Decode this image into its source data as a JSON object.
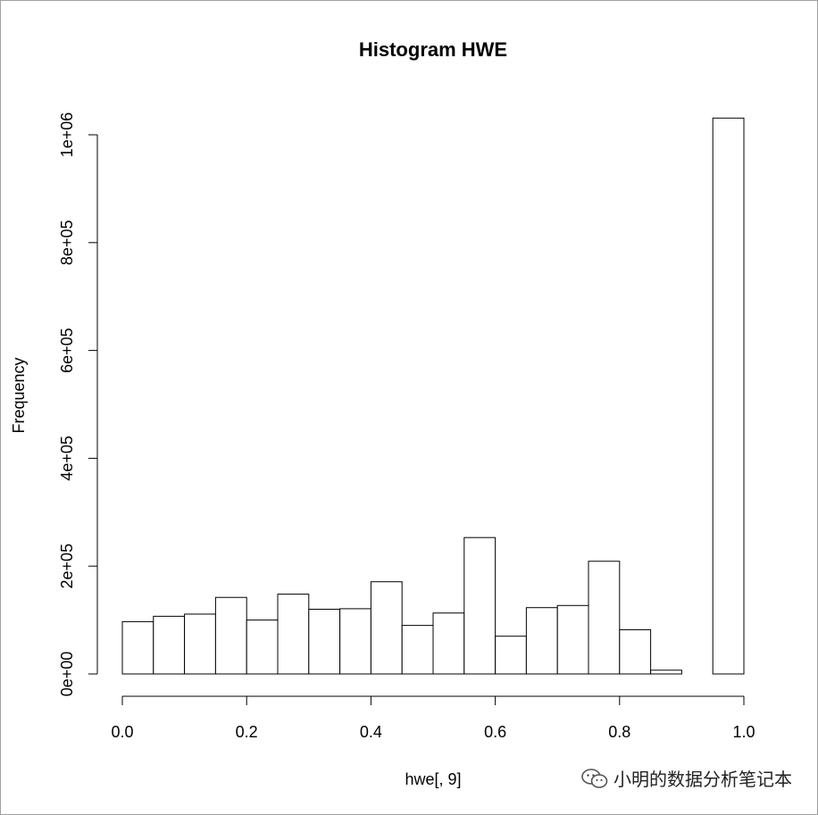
{
  "chart_data": {
    "type": "bar",
    "title": "Histogram HWE",
    "xlabel": "hwe[, 9]",
    "ylabel": "Frequency",
    "bin_width": 0.05,
    "bins_start": [
      0.0,
      0.05,
      0.1,
      0.15,
      0.2,
      0.25,
      0.3,
      0.35,
      0.4,
      0.45,
      0.5,
      0.55,
      0.6,
      0.65,
      0.7,
      0.75,
      0.8,
      0.85,
      0.9,
      0.95
    ],
    "values": [
      97000,
      107000,
      111000,
      142000,
      100000,
      148000,
      120000,
      121000,
      171000,
      90000,
      113000,
      253000,
      70000,
      123000,
      127000,
      209000,
      82000,
      7000,
      0,
      1031000
    ],
    "xlim": [
      0,
      1
    ],
    "ylim": [
      0,
      1000000
    ],
    "x_ticks": [
      0.0,
      0.2,
      0.4,
      0.6,
      0.8,
      1.0
    ],
    "x_tick_labels": [
      "0.0",
      "0.2",
      "0.4",
      "0.6",
      "0.8",
      "1.0"
    ],
    "y_ticks": [
      0,
      200000,
      400000,
      600000,
      800000,
      1000000
    ],
    "y_tick_labels": [
      "0e+00",
      "2e+05",
      "4e+05",
      "6e+05",
      "8e+05",
      "1e+06"
    ],
    "grid": false
  },
  "watermark": {
    "text": "小明的数据分析笔记本",
    "icon": "wechat-icon"
  }
}
